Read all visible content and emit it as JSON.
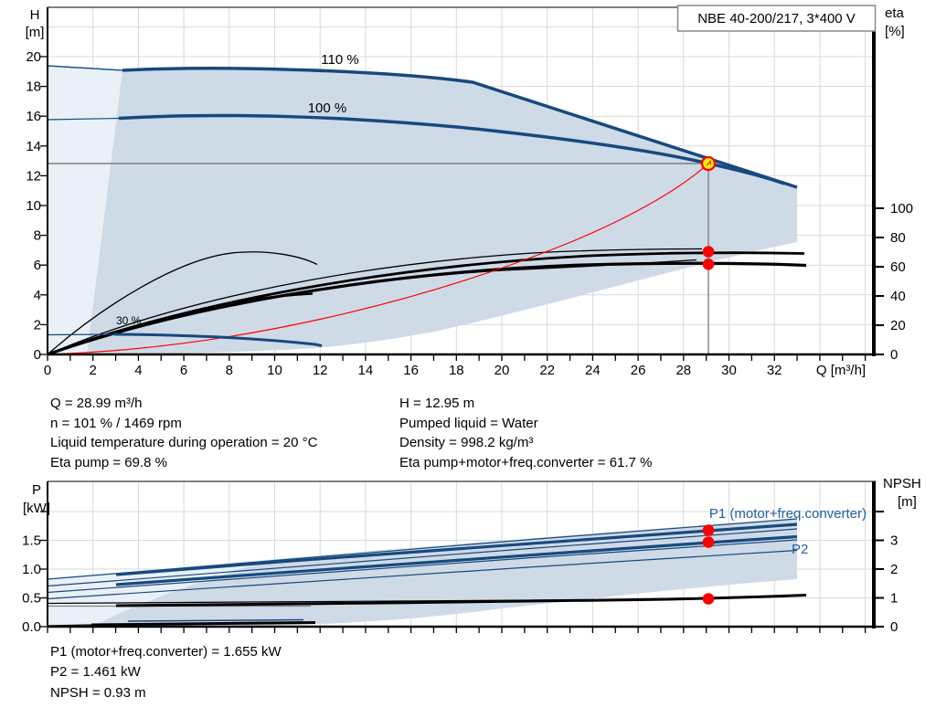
{
  "title_box": {
    "label": "NBE 40-200/217, 3*400 V"
  },
  "top_chart": {
    "left_axis": {
      "title_line1": "H",
      "title_line2": "[m]",
      "ticks": [
        "0",
        "2",
        "4",
        "6",
        "8",
        "10",
        "12",
        "14",
        "16",
        "18",
        "20"
      ]
    },
    "right_axis": {
      "title_line1": "eta",
      "title_line2": "[%]",
      "ticks": [
        "0",
        "20",
        "40",
        "60",
        "80",
        "100"
      ]
    },
    "x_axis": {
      "ticks": [
        "0",
        "2",
        "4",
        "6",
        "8",
        "10",
        "12",
        "14",
        "16",
        "18",
        "20",
        "22",
        "24",
        "26",
        "28",
        "30",
        "32"
      ],
      "title": "Q [m³/h]"
    },
    "labels": {
      "speed_110": "110 %",
      "speed_100": "100 %",
      "eff_30": "30 %"
    }
  },
  "bottom_chart": {
    "left_axis": {
      "title_line1": "P",
      "title_line2": "[kW]",
      "ticks": [
        "0.0",
        "0.5",
        "1.0",
        "1.5"
      ]
    },
    "right_axis": {
      "title_line1": "NPSH",
      "title_line2": "[m]",
      "ticks": [
        "0",
        "1",
        "2",
        "3"
      ]
    },
    "labels": {
      "p1": "P1 (motor+freq.converter)",
      "p2": "P2"
    }
  },
  "results_top": {
    "left": [
      "Q = 28.99 m³/h",
      "n = 101 % / 1469 rpm",
      "Liquid temperature during operation = 20 °C",
      "Eta pump = 69.8 %"
    ],
    "right": [
      "H = 12.95 m",
      "Pumped liquid = Water",
      "Density = 998.2 kg/m³",
      "Eta pump+motor+freq.converter = 61.7 %"
    ]
  },
  "results_bottom": [
    "P1 (motor+freq.converter) = 1.655 kW",
    "P2 = 1.461 kW",
    "NPSH = 0.93 m"
  ],
  "colors": {
    "curve_navy": "#17497e",
    "fill_dark": "#cfdae7",
    "fill_light": "#e9f0f7",
    "red": "#ff0000",
    "duty_yellow": "#ffec00",
    "label_blue": "#1f5fa8",
    "gray": "#808080",
    "grid": "#d9d9d9"
  },
  "chart_data": [
    {
      "type": "line",
      "title": "NBE 40-200/217, 3*400 V",
      "xlabel": "Q [m³/h]",
      "ylabel_left": "H [m]",
      "ylabel_right": "eta [%]",
      "xlim": [
        0,
        36.5
      ],
      "ylim_left": [
        0,
        23.3
      ],
      "ylim_right": [
        0,
        118
      ],
      "grid": true,
      "legend_position": "none",
      "series": [
        {
          "name": "110 %",
          "axis": "left",
          "color": "#17497e",
          "x": [
            3.3,
            8,
            14,
            18.7,
            25,
            33
          ],
          "y": [
            19.1,
            19.2,
            18.8,
            18.3,
            14.9,
            11.2
          ]
        },
        {
          "name": "100 %",
          "axis": "left",
          "color": "#17497e",
          "x": [
            0,
            3.2,
            8,
            14,
            20,
            25,
            28.99,
            32.4
          ],
          "y": [
            15.8,
            15.9,
            16.0,
            15.5,
            14.7,
            13.8,
            12.95,
            11.5
          ]
        },
        {
          "name": "min speed",
          "axis": "left",
          "color": "#17497e",
          "x": [
            0,
            3,
            8,
            11.8
          ],
          "y": [
            1.3,
            1.3,
            1.2,
            0.65
          ]
        },
        {
          "name": "eta pump",
          "axis": "right",
          "color": "#000000",
          "x": [
            0,
            5,
            10,
            15,
            20,
            25,
            28.99,
            33
          ],
          "y": [
            0,
            22,
            39,
            52,
            61,
            67,
            69.8,
            69
          ]
        },
        {
          "name": "eta pump+motor+freq.converter",
          "axis": "right",
          "color": "#000000",
          "x": [
            0,
            5,
            10,
            15,
            20,
            25,
            28.99,
            33
          ],
          "y": [
            0,
            19,
            35,
            47,
            55,
            60,
            61.7,
            60.5
          ]
        },
        {
          "name": "eta min speed",
          "axis": "right",
          "color": "#000000",
          "x": [
            0,
            3,
            6,
            8.5,
            11.5
          ],
          "y": [
            0,
            38,
            62,
            69,
            61
          ]
        },
        {
          "name": "system curve",
          "axis": "left",
          "color": "#ff0000",
          "x": [
            0,
            5,
            10,
            15,
            20,
            25,
            28.99
          ],
          "y": [
            0,
            0.39,
            1.54,
            3.47,
            6.16,
            9.63,
            12.95
          ]
        }
      ],
      "operating_point": {
        "Q": 28.99,
        "H": 12.95,
        "eta_pump": 69.8,
        "eta_total": 61.7
      },
      "envelope": {
        "Q_range": [
          0,
          33
        ],
        "H_top_at_min_Q": 19.2,
        "H_right_edge": [
          7.5,
          11.3
        ]
      }
    },
    {
      "type": "line",
      "xlabel": "Q [m³/h]",
      "ylabel_left": "P [kW]",
      "ylabel_right": "NPSH [m]",
      "xlim": [
        0,
        36.5
      ],
      "ylim_left": [
        0,
        2.52
      ],
      "ylim_right": [
        0,
        5.05
      ],
      "grid": true,
      "series": [
        {
          "name": "P1 (motor+freq.converter)",
          "axis": "left",
          "color": "#17497e",
          "x": [
            3,
            10,
            20,
            28.99,
            33
          ],
          "y": [
            0.9,
            1.08,
            1.35,
            1.655,
            1.78
          ]
        },
        {
          "name": "P2",
          "axis": "left",
          "color": "#17497e",
          "x": [
            3,
            10,
            20,
            28.99,
            33
          ],
          "y": [
            0.73,
            0.92,
            1.2,
            1.461,
            1.57
          ]
        },
        {
          "name": "NPSH",
          "axis": "right",
          "color": "#000000",
          "x": [
            3,
            10,
            20,
            28.99,
            33
          ],
          "y": [
            0.72,
            0.75,
            0.83,
            0.93,
            1.1
          ]
        },
        {
          "name": "P min speed",
          "axis": "left",
          "color": "#000000",
          "x": [
            0,
            6,
            11.8
          ],
          "y": [
            0.02,
            0.05,
            0.07
          ]
        }
      ],
      "operating_point": {
        "Q": 28.99,
        "P1": 1.655,
        "P2": 1.461,
        "NPSH": 0.93
      }
    }
  ]
}
